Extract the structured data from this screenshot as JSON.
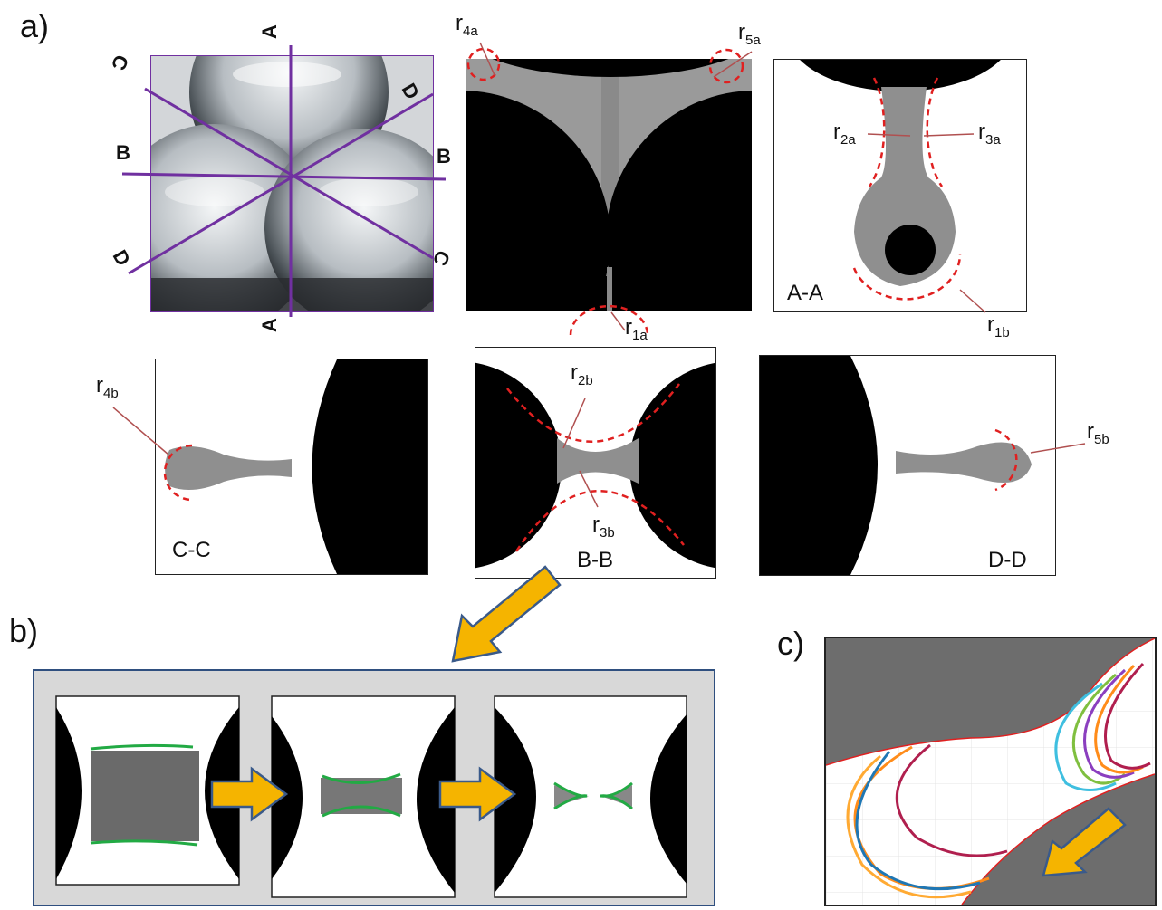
{
  "panels": {
    "a": "a)",
    "b": "b)",
    "c": "c)"
  },
  "photo_labels": {
    "a_top": "A",
    "a_bottom": "A",
    "b_left": "B",
    "b_right": "B",
    "c_top": "C",
    "c_bottom": "C",
    "d_left": "D",
    "d_right": "D"
  },
  "sections": {
    "aa": "A-A",
    "bb": "B-B",
    "cc": "C-C",
    "dd": "D-D"
  },
  "radii": {
    "r1a": {
      "base": "r",
      "sub": "1a"
    },
    "r2a": {
      "base": "r",
      "sub": "2a"
    },
    "r3a": {
      "base": "r",
      "sub": "3a"
    },
    "r4a": {
      "base": "r",
      "sub": "4a"
    },
    "r5a": {
      "base": "r",
      "sub": "5a"
    },
    "r1b": {
      "base": "r",
      "sub": "1b"
    },
    "r2b": {
      "base": "r",
      "sub": "2b"
    },
    "r3b": {
      "base": "r",
      "sub": "3b"
    },
    "r4b": {
      "base": "r",
      "sub": "4b"
    },
    "r5b": {
      "base": "r",
      "sub": "5b"
    }
  },
  "colors": {
    "purple_line": "#7030a0",
    "dashed_red": "#e02020",
    "pointer": "#b05050",
    "meniscus_green": "#22aa44",
    "arrow_orange": "#f5b400",
    "arrow_outline": "#3a5a8a",
    "frame_b_border": "#2f4f7f",
    "frame_b_fill": "#d8d8d8",
    "panel_c_grey": "#6d6d6d"
  },
  "curve_colors": [
    "#ff8c1a",
    "#1f77b4",
    "#b01f4e",
    "#7fbf3f",
    "#8b3fbf",
    "#3fbfe0",
    "#ffaa33"
  ]
}
